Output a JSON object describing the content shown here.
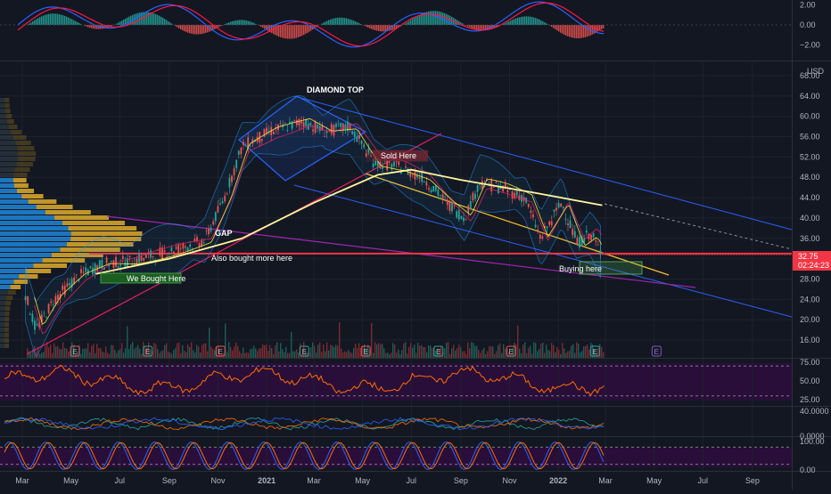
{
  "chart_data": [
    {
      "type": "line",
      "panel": "macd",
      "yticks": [
        "2.00",
        "0.00",
        "−2.00"
      ],
      "ylim": [
        -3.2,
        2.6
      ]
    },
    {
      "type": "line",
      "panel": "price",
      "currency": "USD",
      "yticks": [
        "68.00",
        "64.00",
        "60.00",
        "56.00",
        "52.00",
        "48.00",
        "44.00",
        "40.00",
        "36.00",
        "32.00",
        "28.00",
        "24.00",
        "20.00",
        "16.00"
      ],
      "ylim": [
        13.5,
        69
      ],
      "last_price": "32.75",
      "countdown": "02:24:23",
      "annotations": {
        "diamond_top": "DIAMOND TOP",
        "sold_here": "Sold Here",
        "gap": "GAP",
        "also_bought": "Also bought more here",
        "we_bought": "We Bought Here",
        "buying_here": "Buying here"
      },
      "earnings_marker": "E",
      "earnings_dates": [
        "2020-05-06",
        "2020-08-05",
        "2020-11-04",
        "2021-02-17",
        "2021-05-05",
        "2021-08-04",
        "2021-11-03",
        "2022-02-16",
        "2022-05-04"
      ],
      "price_series": [
        {
          "d": "2020-03-05",
          "v": 25
        },
        {
          "d": "2020-03-18",
          "v": 18
        },
        {
          "d": "2020-04-10",
          "v": 24
        },
        {
          "d": "2020-05-10",
          "v": 28.5
        },
        {
          "d": "2020-06-10",
          "v": 31
        },
        {
          "d": "2020-07-15",
          "v": 31.5
        },
        {
          "d": "2020-08-20",
          "v": 33
        },
        {
          "d": "2020-10-15",
          "v": 35.5
        },
        {
          "d": "2020-11-09",
          "v": 44
        },
        {
          "d": "2020-12-01",
          "v": 54
        },
        {
          "d": "2021-01-05",
          "v": 57
        },
        {
          "d": "2021-02-15",
          "v": 59
        },
        {
          "d": "2021-03-15",
          "v": 57
        },
        {
          "d": "2021-04-15",
          "v": 58
        },
        {
          "d": "2021-05-15",
          "v": 51
        },
        {
          "d": "2021-06-15",
          "v": 50
        },
        {
          "d": "2021-07-15",
          "v": 48
        },
        {
          "d": "2021-08-15",
          "v": 43
        },
        {
          "d": "2021-09-05",
          "v": 40
        },
        {
          "d": "2021-09-25",
          "v": 47
        },
        {
          "d": "2021-10-20",
          "v": 46
        },
        {
          "d": "2021-11-20",
          "v": 44
        },
        {
          "d": "2021-12-10",
          "v": 36
        },
        {
          "d": "2022-01-05",
          "v": 43
        },
        {
          "d": "2022-01-25",
          "v": 35
        },
        {
          "d": "2022-02-10",
          "v": 37
        },
        {
          "d": "2022-02-25",
          "v": 32.75
        }
      ],
      "ma200_series": [
        {
          "d": "2020-06-01",
          "v": 29
        },
        {
          "d": "2020-09-01",
          "v": 32
        },
        {
          "d": "2020-12-01",
          "v": 36
        },
        {
          "d": "2021-03-01",
          "v": 43
        },
        {
          "d": "2021-05-20",
          "v": 48.5
        },
        {
          "d": "2021-07-01",
          "v": 49.5
        },
        {
          "d": "2021-09-01",
          "v": 47.5
        },
        {
          "d": "2021-12-01",
          "v": 45
        },
        {
          "d": "2022-02-25",
          "v": 42.5
        }
      ]
    },
    {
      "type": "line",
      "panel": "rsi",
      "yticks": [
        "75.00",
        "50.00",
        "25.00"
      ],
      "ylim": [
        24,
        76
      ]
    },
    {
      "type": "line",
      "panel": "dmi",
      "yticks": [
        "40.0000",
        "0.0000"
      ],
      "ylim": [
        -10,
        42
      ]
    },
    {
      "type": "line",
      "panel": "stoch_rsi",
      "yticks": [
        "100.00",
        "0.00"
      ],
      "ylim": [
        -5,
        105
      ]
    }
  ],
  "x_axis": {
    "ticks": [
      {
        "label": "Mar",
        "d": "2020-03-01"
      },
      {
        "label": "May",
        "d": "2020-05-01"
      },
      {
        "label": "Jul",
        "d": "2020-07-01"
      },
      {
        "label": "Sep",
        "d": "2020-09-01"
      },
      {
        "label": "Nov",
        "d": "2020-11-01"
      },
      {
        "label": "2021",
        "d": "2021-01-01",
        "bold": true
      },
      {
        "label": "Mar",
        "d": "2021-03-01"
      },
      {
        "label": "May",
        "d": "2021-05-01"
      },
      {
        "label": "Jul",
        "d": "2021-07-01"
      },
      {
        "label": "Sep",
        "d": "2021-09-01"
      },
      {
        "label": "Nov",
        "d": "2021-11-01"
      },
      {
        "label": "2022",
        "d": "2022-01-01",
        "bold": true
      },
      {
        "label": "Mar",
        "d": "2022-03-01"
      },
      {
        "label": "May",
        "d": "2022-05-01"
      },
      {
        "label": "Jul",
        "d": "2022-07-01"
      },
      {
        "label": "Sep",
        "d": "2022-09-01"
      }
    ]
  },
  "colors": {
    "background": "#131722",
    "price_label_bg": "#f23645",
    "up": "#26a69a",
    "down": "#ef5350",
    "channel": "#2962ff",
    "trend": "#e91e63",
    "support": "#f23645",
    "ma200": "#fff59d",
    "rsi": "#ff6d00",
    "stoch_k": "#2962ff",
    "stoch_d": "#ff6d00",
    "indicator_bg": "#2a0e3a"
  }
}
